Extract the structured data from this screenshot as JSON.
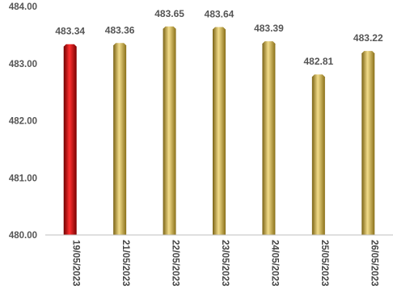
{
  "chart_data": {
    "type": "bar",
    "categories": [
      "19/05/2023",
      "21/05/2023",
      "22/05/2023",
      "23/05/2023",
      "24/05/2023",
      "25/05/2023",
      "26/05/2023"
    ],
    "values": [
      483.34,
      483.36,
      483.65,
      483.64,
      483.39,
      482.81,
      483.22
    ],
    "data_labels": [
      "483.34",
      "483.36",
      "483.65",
      "483.64",
      "483.39",
      "482.81",
      "483.22"
    ],
    "y_tick_labels": [
      "480.00",
      "481.00",
      "482.00",
      "483.00",
      "484.00"
    ],
    "ylim": [
      480,
      484
    ],
    "title": "",
    "xlabel": "",
    "ylabel": "",
    "grid": false,
    "legend": "none",
    "colors": {
      "highlight_bar": "#cc0000",
      "bar": "#d4b448",
      "axis": "#bfbfbf"
    }
  }
}
